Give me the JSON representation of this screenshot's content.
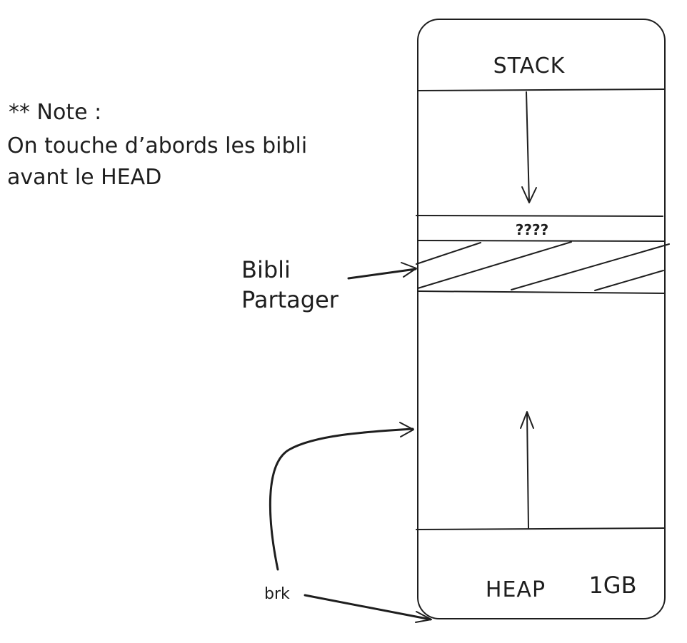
{
  "note": {
    "lines": [
      "** Note :",
      "On touche d’abords les bibli",
      "avant le HEAD"
    ]
  },
  "memory": {
    "stack_label": "STACK",
    "unknown_label": "????",
    "heap_label": "HEAP",
    "size_label": "1GB"
  },
  "shared_lib": {
    "lines": [
      "Bibli",
      "Partager"
    ]
  },
  "brk_label": "brk",
  "colors": {
    "ink": "#1e1e1e",
    "background": "#ffffff"
  }
}
